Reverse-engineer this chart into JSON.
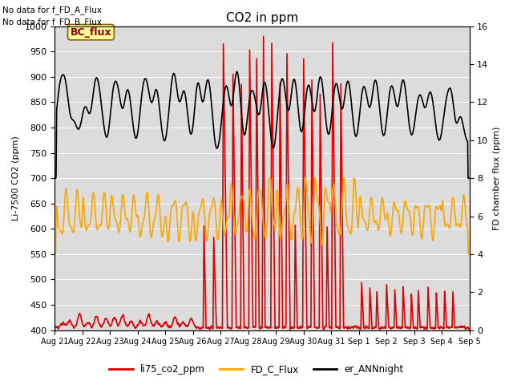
{
  "title": "CO2 in ppm",
  "ylabel_left": "Li-7500 CO2 (ppm)",
  "ylabel_right": "FD chamber flux (ppm)",
  "ylim_left": [
    400,
    1000
  ],
  "ylim_right": [
    0,
    16
  ],
  "bg_color": "#dcdcdc",
  "no_data_text": [
    "No data for f_FD_A_Flux",
    "No data for f_FD_B_Flux"
  ],
  "bc_flux_label": "BC_flux",
  "legend": [
    {
      "label": "li75_co2_ppm",
      "color": "#dd0000",
      "lw": 1.2
    },
    {
      "label": "FD_C_Flux",
      "color": "#ffa500",
      "lw": 1.2
    },
    {
      "label": "er_ANNnight",
      "color": "#000000",
      "lw": 1.2
    }
  ],
  "xticklabels": [
    "Aug 21",
    "Aug 22",
    "Aug 23",
    "Aug 24",
    "Aug 25",
    "Aug 26",
    "Aug 27",
    "Aug 28",
    "Aug 29",
    "Aug 30",
    "Aug 31",
    "Sep 1",
    "Sep 2",
    "Sep 3",
    "Sep 4",
    "Sep 5"
  ],
  "n_points": 2160,
  "yticks_left": [
    400,
    450,
    500,
    550,
    600,
    650,
    700,
    750,
    800,
    850,
    900,
    950,
    1000
  ],
  "yticks_right": [
    0,
    2,
    4,
    6,
    8,
    10,
    12,
    14,
    16
  ]
}
